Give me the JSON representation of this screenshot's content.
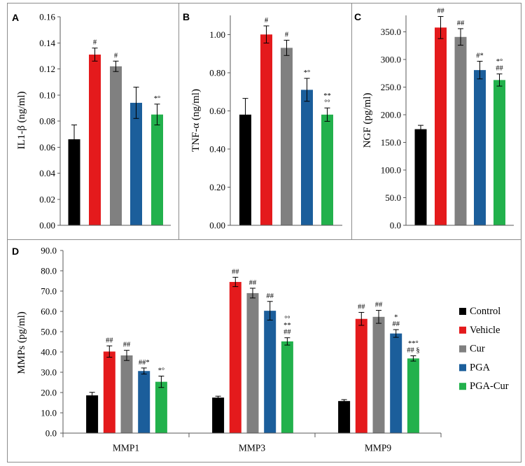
{
  "series_colors": [
    "#000000",
    "#e41a1c",
    "#808080",
    "#1b5e9b",
    "#22b14c"
  ],
  "chart_data": [
    {
      "panel": "A",
      "type": "bar",
      "ylabel": "IL1-β (ng/ml)",
      "ylim": [
        0,
        0.16
      ],
      "yticks": [
        "0.00",
        "0.02",
        "0.04",
        "0.06",
        "0.08",
        "0.10",
        "0.12",
        "0.14",
        "0.16"
      ],
      "values": [
        0.066,
        0.131,
        0.122,
        0.094,
        0.085
      ],
      "errors": [
        0.011,
        0.005,
        0.004,
        0.012,
        0.008
      ],
      "annotations": [
        [],
        [
          "#"
        ],
        [
          "#"
        ],
        [],
        [
          "*°"
        ]
      ]
    },
    {
      "panel": "B",
      "type": "bar",
      "ylabel": "TNF-α (ng/ml)",
      "ylim": [
        0,
        1.1
      ],
      "yticks": [
        "0.00",
        "0.20",
        "0.40",
        "0.60",
        "0.80",
        "1.00"
      ],
      "values": [
        0.58,
        1.0,
        0.93,
        0.71,
        0.58
      ],
      "errors": [
        0.085,
        0.045,
        0.04,
        0.06,
        0.035
      ],
      "annotations": [
        [],
        [
          "#"
        ],
        [
          "#"
        ],
        [
          "*°"
        ],
        [
          "**",
          "°°"
        ]
      ]
    },
    {
      "panel": "C",
      "type": "bar",
      "ylabel": "NGF (pg/ml)",
      "ylim": [
        0,
        380
      ],
      "yticks": [
        "0.0",
        "50.0",
        "100.0",
        "150.0",
        "200.0",
        "250.0",
        "300.0",
        "350.0"
      ],
      "values": [
        174,
        358,
        341,
        281,
        263
      ],
      "errors": [
        7,
        20,
        15,
        16,
        11
      ],
      "annotations": [
        [],
        [
          "##"
        ],
        [
          "##"
        ],
        [
          "#*"
        ],
        [
          "*°",
          "##"
        ]
      ]
    },
    {
      "panel": "D",
      "type": "bar",
      "ylabel": "MMPs (pg/ml)",
      "ylim": [
        0,
        90
      ],
      "yticks": [
        "0.0",
        "10.0",
        "20.0",
        "30.0",
        "40.0",
        "50.0",
        "60.0",
        "70.0",
        "80.0",
        "90.0"
      ],
      "categories": [
        "MMP1",
        "MMP3",
        "MMP9"
      ],
      "legend": "right",
      "series": [
        {
          "name": "Control",
          "values": [
            18.6,
            17.5,
            15.8
          ],
          "errors": [
            1.5,
            0.7,
            0.7
          ],
          "annotations": [
            [],
            [],
            []
          ]
        },
        {
          "name": "Vehicle",
          "values": [
            40.2,
            74.5,
            56.3
          ],
          "errors": [
            2.8,
            2.3,
            3.2
          ],
          "annotations": [
            [
              "##"
            ],
            [
              "##"
            ],
            [
              "##"
            ]
          ]
        },
        {
          "name": "Cur",
          "values": [
            38.3,
            69.0,
            57.3
          ],
          "errors": [
            2.5,
            2.4,
            3.2
          ],
          "annotations": [
            [
              "##"
            ],
            [
              "##"
            ],
            [
              "##"
            ]
          ]
        },
        {
          "name": "PGA",
          "values": [
            30.6,
            60.3,
            49.1
          ],
          "errors": [
            1.5,
            4.6,
            1.9
          ],
          "annotations": [
            [
              "##*"
            ],
            [
              "##"
            ],
            [
              "*",
              "##"
            ]
          ]
        },
        {
          "name": "PGA-Cur",
          "values": [
            25.3,
            45.2,
            36.8
          ],
          "errors": [
            2.8,
            1.8,
            1.3
          ],
          "annotations": [
            [
              "*°"
            ],
            [
              "°°",
              "**",
              "##"
            ],
            [
              "**°",
              "## §"
            ]
          ]
        }
      ]
    }
  ]
}
